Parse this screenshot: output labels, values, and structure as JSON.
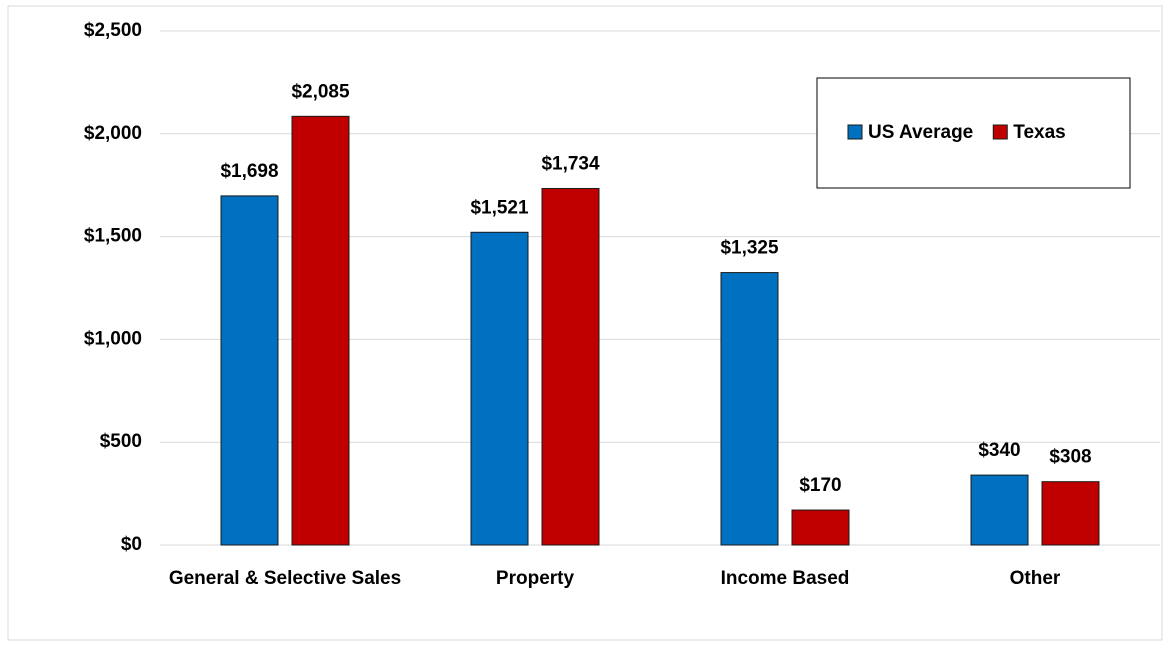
{
  "chart_data": {
    "type": "bar",
    "categories": [
      "General & Selective Sales",
      "Property",
      "Income Based",
      "Other"
    ],
    "series": [
      {
        "name": "US Average",
        "color": "#0070c0",
        "values": [
          1698,
          1521,
          1325,
          340
        ],
        "value_labels": [
          "$1,698",
          "$1,521",
          "$1,325",
          "$340"
        ]
      },
      {
        "name": "Texas",
        "color": "#c00000",
        "values": [
          2085,
          1734,
          170,
          308
        ],
        "value_labels": [
          "$2,085",
          "$1,734",
          "$170",
          "$308"
        ]
      }
    ],
    "ylim": [
      0,
      2500
    ],
    "yticks": [
      {
        "value": 0,
        "label": "$0"
      },
      {
        "value": 500,
        "label": "$500"
      },
      {
        "value": 1000,
        "label": "$1,000"
      },
      {
        "value": 1500,
        "label": "$1,500"
      },
      {
        "value": 2000,
        "label": "$2,000"
      },
      {
        "value": 2500,
        "label": "$2,500"
      }
    ],
    "grid": true,
    "legend": "upper right"
  }
}
